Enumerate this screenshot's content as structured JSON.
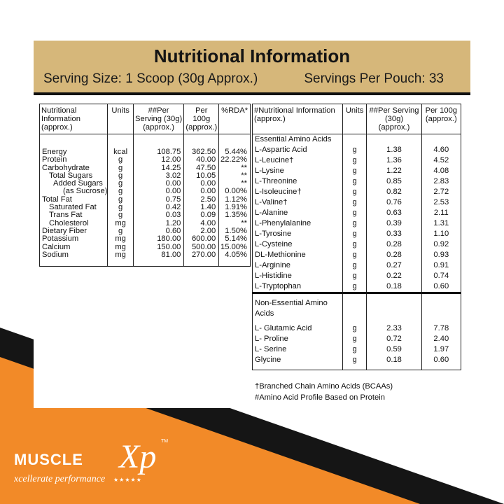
{
  "colors": {
    "header_bg": "#d6b77a",
    "accent_orange": "#f28a28",
    "dark": "#151515"
  },
  "header": {
    "title": "Nutritional Information",
    "serving_size": "Serving Size: 1 Scoop (30g Approx.)",
    "servings_per": "Servings Per Pouch: 33"
  },
  "nutrition": {
    "headers": [
      "Nutritional Information (approx.)",
      "Units",
      "##Per Serving (30g) (approx.)",
      "Per 100g (approx.)",
      "%RDA*"
    ],
    "rows": [
      {
        "name": "Energy",
        "unit": "kcal",
        "serving": "108.75",
        "per100": "362.50",
        "rda": "5.44%"
      },
      {
        "name": "Protein",
        "unit": "g",
        "serving": "12.00",
        "per100": "40.00",
        "rda": "22.22%"
      },
      {
        "name": "Carbohydrate",
        "unit": "g",
        "serving": "14.25",
        "per100": "47.50",
        "rda": "**"
      },
      {
        "name": "Total Sugars",
        "unit": "g",
        "serving": "3.02",
        "per100": "10.05",
        "rda": "**"
      },
      {
        "name": "Added Sugars",
        "unit": "g",
        "serving": "0.00",
        "per100": "0.00",
        "rda": "**"
      },
      {
        "name": "(as Sucrose)",
        "unit": "g",
        "serving": "0.00",
        "per100": "0.00",
        "rda": "0.00%"
      },
      {
        "name": "Total Fat",
        "unit": "g",
        "serving": "0.75",
        "per100": "2.50",
        "rda": "1.12%"
      },
      {
        "name": "Saturated Fat",
        "unit": "g",
        "serving": "0.42",
        "per100": "1.40",
        "rda": "1.91%"
      },
      {
        "name": "Trans Fat",
        "unit": "g",
        "serving": "0.03",
        "per100": "0.09",
        "rda": "1.35%"
      },
      {
        "name": "Cholesterol",
        "unit": "mg",
        "serving": "1.20",
        "per100": "4.00",
        "rda": "**"
      },
      {
        "name": "Dietary Fiber",
        "unit": "g",
        "serving": "0.60",
        "per100": "2.00",
        "rda": "1.50%"
      },
      {
        "name": "Potassium",
        "unit": "mg",
        "serving": "180.00",
        "per100": "600.00",
        "rda": "5.14%"
      },
      {
        "name": "Calcium",
        "unit": "mg",
        "serving": "150.00",
        "per100": "500.00",
        "rda": "15.00%"
      },
      {
        "name": "Sodium",
        "unit": "mg",
        "serving": "81.00",
        "per100": "270.00",
        "rda": "4.05%"
      }
    ]
  },
  "amino": {
    "headers": [
      "#Nutritional Information (approx.)",
      "Units",
      "##Per Serving (30g) (approx.)",
      "Per 100g (approx.)"
    ],
    "essential_title": "Essential Amino Acids",
    "essential": [
      {
        "name": "L-Aspartic Acid",
        "unit": "g",
        "serving": "1.38",
        "per100": "4.60"
      },
      {
        "name": "L-Leucine†",
        "unit": "g",
        "serving": "1.36",
        "per100": "4.52"
      },
      {
        "name": "L-Lysine",
        "unit": "g",
        "serving": "1.22",
        "per100": "4.08"
      },
      {
        "name": "L-Threonine",
        "unit": "g",
        "serving": "0.85",
        "per100": "2.83"
      },
      {
        "name": "L-Isoleucine†",
        "unit": "g",
        "serving": "0.82",
        "per100": "2.72"
      },
      {
        "name": "L-Valine†",
        "unit": "g",
        "serving": "0.76",
        "per100": "2.53"
      },
      {
        "name": "L-Alanine",
        "unit": "g",
        "serving": "0.63",
        "per100": "2.11"
      },
      {
        "name": "L-Phenylalanine",
        "unit": "g",
        "serving": "0.39",
        "per100": "1.31"
      },
      {
        "name": "L-Tyrosine",
        "unit": "g",
        "serving": "0.33",
        "per100": "1.10"
      },
      {
        "name": "L-Cysteine",
        "unit": "g",
        "serving": "0.28",
        "per100": "0.92"
      },
      {
        "name": "DL-Methionine",
        "unit": "g",
        "serving": "0.28",
        "per100": "0.93"
      },
      {
        "name": "L-Arginine",
        "unit": "g",
        "serving": "0.27",
        "per100": "0.91"
      },
      {
        "name": "L-Histidine",
        "unit": "g",
        "serving": "0.22",
        "per100": "0.74"
      },
      {
        "name": "L-Tryptophan",
        "unit": "g",
        "serving": "0.18",
        "per100": "0.60"
      }
    ],
    "nonessential_title": "Non-Essential Amino Acids",
    "nonessential": [
      {
        "name": "L- Glutamic Acid",
        "unit": "g",
        "serving": "2.33",
        "per100": "7.78"
      },
      {
        "name": "L- Proline",
        "unit": "g",
        "serving": "0.72",
        "per100": "2.40"
      },
      {
        "name": "L- Serine",
        "unit": "g",
        "serving": "0.59",
        "per100": "1.97"
      },
      {
        "name": "Glycine",
        "unit": "g",
        "serving": "0.18",
        "per100": "0.60"
      }
    ]
  },
  "footnotes": {
    "bcaa": "†Branched Chain Amino Acids (BCAAs)",
    "profile": "#Amino Acid Profile Based on Protein"
  },
  "brand": {
    "name": "MUSCLE",
    "mark": "Xp",
    "tm": "TM",
    "tagline": "xcellerate performance",
    "stars": "★★★★★"
  }
}
